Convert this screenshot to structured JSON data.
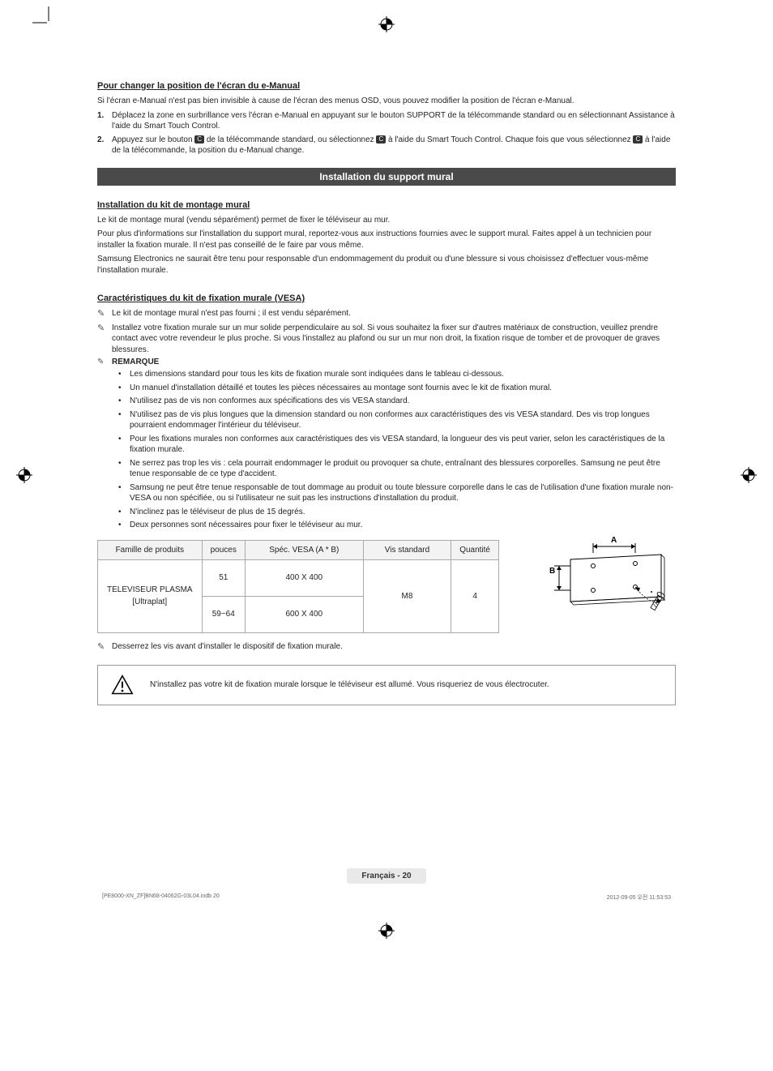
{
  "section1": {
    "heading": "Pour changer la position de l'écran du e-Manual",
    "intro": "Si l'écran e-Manual n'est pas bien invisible à cause de l'écran des menus OSD, vous pouvez modifier la position de l'écran e-Manual.",
    "steps": [
      {
        "num": "1.",
        "text": "Déplacez la zone en surbrillance vers l'écran e-Manual en appuyant sur le bouton SUPPORT de la télécommande standard ou en sélectionnant Assistance à l'aide du Smart Touch Control."
      },
      {
        "num": "2.",
        "text_a": "Appuyez sur le bouton ",
        "btn_c": "C",
        "text_b": " de la télécommande standard, ou sélectionnez ",
        "text_c": " à l'aide du Smart Touch Control. Chaque fois que vous sélectionnez ",
        "text_d": " à l'aide de la télécommande, la position du e-Manual change."
      }
    ]
  },
  "banner": "Installation du support mural",
  "section2": {
    "heading": "Installation du kit de montage mural",
    "paras": [
      "Le kit de montage mural (vendu séparément) permet de fixer le téléviseur au mur.",
      "Pour plus d'informations sur l'installation du support mural, reportez-vous aux instructions fournies avec le support mural. Faites appel à un technicien pour installer la fixation murale. Il n'est pas conseillé de le faire par vous même.",
      "Samsung Electronics ne saurait être tenu pour responsable d'un endommagement du produit ou d'une blessure si vous choisissez d'effectuer vous-même l'installation murale."
    ]
  },
  "section3": {
    "heading": "Caractéristiques du kit de fixation murale (VESA)",
    "notes": [
      "Le kit de montage mural n'est pas fourni ; il est vendu séparément.",
      "Installez votre fixation murale sur un mur solide perpendiculaire au sol. Si vous souhaitez la fixer sur d'autres matériaux de construction, veuillez prendre contact avec votre revendeur le plus proche. Si vous l'installez au plafond ou sur un mur non droit, la fixation risque de tomber et de provoquer de graves blessures."
    ],
    "remarque_label": "REMARQUE",
    "bullets": [
      "Les dimensions standard pour tous les kits de fixation murale sont indiquées dans le tableau ci-dessous.",
      "Un manuel d'installation détaillé et toutes les pièces nécessaires au montage sont fournis avec le kit de fixation mural.",
      "N'utilisez pas de vis non conformes aux spécifications des vis VESA standard.",
      "N'utilisez pas de vis plus longues que la dimension standard ou non conformes aux caractéristiques des vis VESA standard. Des vis trop longues pourraient endommager l'intérieur du téléviseur.",
      "Pour les fixations murales non conformes aux caractéristiques des vis VESA standard, la longueur des vis peut varier, selon les caractéristiques de la fixation murale.",
      "Ne serrez pas trop les vis : cela pourrait endommager le produit ou provoquer sa chute, entraînant des blessures corporelles. Samsung ne peut être tenue responsable de ce type d'accident.",
      "Samsung ne peut être tenue responsable de tout dommage au produit ou toute blessure corporelle dans le cas de l'utilisation d'une fixation murale non-VESA ou non spécifiée, ou si l'utilisateur ne suit pas les instructions d'installation du produit.",
      "N'inclinez pas le téléviseur de plus de 15 degrés.",
      "Deux personnes sont nécessaires pour fixer le téléviseur au mur."
    ]
  },
  "table": {
    "headers": [
      "Famille de produits",
      "pouces",
      "Spéc. VESA (A * B)",
      "Vis standard",
      "Quantité"
    ],
    "family": "TELEVISEUR PLASMA [Ultraplat]",
    "rows": [
      {
        "pouces": "51",
        "vesa": "400 X 400"
      },
      {
        "pouces": "59~64",
        "vesa": "600 X 400"
      }
    ],
    "screw": "M8",
    "qty": "4"
  },
  "diagram": {
    "label_a": "A",
    "label_b": "B"
  },
  "loosen_note": "Desserrez les vis avant d'installer le dispositif de fixation murale.",
  "warning_text": "N'installez pas votre kit de fixation murale lorsque le téléviseur est allumé. Vous risqueriez de vous électrocuter.",
  "footer": {
    "pill": "Français - 20",
    "left": "[PE8000-XN_ZF]BN68-04062G-03L04.indb   20",
    "right": "2012-09-05   오전 11:53:53"
  },
  "colors": {
    "banner_bg": "#4a4a4a",
    "banner_fg": "#ffffff",
    "text": "#231f20",
    "pill_bg": "#e9e9e9",
    "table_header_bg": "#f3f3f3",
    "border": "#aaaaaa"
  }
}
